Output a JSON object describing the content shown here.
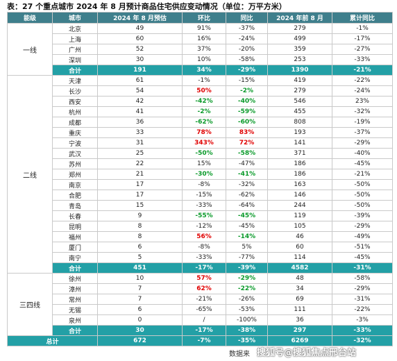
{
  "title": "表：27 个重点城市 2024 年 8 月预计商品住宅供应变动情况（单位：万平方米）",
  "table": {
    "header": [
      "能级",
      "城市",
      "2024 年 8 月预估",
      "环比",
      "同比",
      "2024 年前 8 月",
      "累计同比"
    ],
    "groups": [
      {
        "level": "一线",
        "rows": [
          {
            "cells": [
              "北京",
              "49",
              "91%",
              "-37%",
              "279",
              "-1%"
            ]
          },
          {
            "cells": [
              "上海",
              "60",
              "16%",
              "-24%",
              "499",
              "-17%"
            ]
          },
          {
            "cells": [
              "广州",
              "52",
              "37%",
              "-20%",
              "359",
              "-27%"
            ]
          },
          {
            "cells": [
              "深圳",
              "30",
              "10%",
              "-58%",
              "253",
              "-33%"
            ]
          }
        ],
        "subtotal": {
          "cells": [
            "合计",
            "191",
            "34%",
            "-29%",
            "1390",
            "-21%"
          ]
        }
      },
      {
        "level": "二线",
        "rows": [
          {
            "cells": [
              "天津",
              "61",
              "-1%",
              "-15%",
              "419",
              "-22%"
            ]
          },
          {
            "cells": [
              "长沙",
              "54",
              "50%",
              "-2%",
              "279",
              "-24%"
            ],
            "red": [
              2
            ],
            "green": [
              3
            ]
          },
          {
            "cells": [
              "西安",
              "42",
              "-42%",
              "-40%",
              "546",
              "23%"
            ],
            "green": [
              2,
              3
            ]
          },
          {
            "cells": [
              "杭州",
              "41",
              "-2%",
              "-59%",
              "455",
              "-32%"
            ],
            "green": [
              2,
              3
            ]
          },
          {
            "cells": [
              "成都",
              "36",
              "-62%",
              "-60%",
              "808",
              "-19%"
            ],
            "green": [
              2,
              3
            ]
          },
          {
            "cells": [
              "重庆",
              "33",
              "78%",
              "83%",
              "193",
              "-37%"
            ],
            "red": [
              2,
              3
            ]
          },
          {
            "cells": [
              "宁波",
              "31",
              "343%",
              "72%",
              "141",
              "-29%"
            ],
            "red": [
              2,
              3
            ]
          },
          {
            "cells": [
              "武汉",
              "25",
              "-50%",
              "-58%",
              "371",
              "-40%"
            ],
            "green": [
              2,
              3
            ]
          },
          {
            "cells": [
              "苏州",
              "22",
              "15%",
              "-47%",
              "186",
              "-45%"
            ]
          },
          {
            "cells": [
              "郑州",
              "21",
              "-30%",
              "-41%",
              "186",
              "-21%"
            ],
            "green": [
              2,
              3
            ]
          },
          {
            "cells": [
              "南京",
              "17",
              "-8%",
              "-32%",
              "163",
              "-50%"
            ]
          },
          {
            "cells": [
              "合肥",
              "17",
              "-15%",
              "-62%",
              "146",
              "-50%"
            ]
          },
          {
            "cells": [
              "青岛",
              "15",
              "-33%",
              "-64%",
              "244",
              "-50%"
            ]
          },
          {
            "cells": [
              "长春",
              "9",
              "-55%",
              "-45%",
              "119",
              "-39%"
            ],
            "green": [
              2,
              3
            ]
          },
          {
            "cells": [
              "昆明",
              "8",
              "-12%",
              "-45%",
              "105",
              "-29%"
            ]
          },
          {
            "cells": [
              "福州",
              "8",
              "56%",
              "-14%",
              "46",
              "-49%"
            ],
            "red": [
              2
            ],
            "green": [
              3
            ]
          },
          {
            "cells": [
              "厦门",
              "6",
              "-8%",
              "5%",
              "60",
              "-51%"
            ]
          },
          {
            "cells": [
              "南宁",
              "5",
              "-33%",
              "-77%",
              "114",
              "-45%"
            ]
          }
        ],
        "subtotal": {
          "cells": [
            "合计",
            "451",
            "-17%",
            "-39%",
            "4582",
            "-31%"
          ]
        }
      },
      {
        "level": "三四线",
        "rows": [
          {
            "cells": [
              "徐州",
              "10",
              "57%",
              "-29%",
              "48",
              "-58%"
            ],
            "red": [
              2
            ],
            "green": [
              3
            ]
          },
          {
            "cells": [
              "漳州",
              "7",
              "62%",
              "-22%",
              "34",
              "-29%"
            ],
            "red": [
              2
            ],
            "green": [
              3
            ]
          },
          {
            "cells": [
              "常州",
              "7",
              "-21%",
              "-26%",
              "69",
              "-31%"
            ]
          },
          {
            "cells": [
              "无锡",
              "6",
              "-65%",
              "-53%",
              "111",
              "-22%"
            ]
          },
          {
            "cells": [
              "泉州",
              "0",
              "/",
              "-100%",
              "36",
              "-3%"
            ]
          }
        ],
        "subtotal": {
          "cells": [
            "合计",
            "30",
            "-17%",
            "-38%",
            "297",
            "-33%"
          ]
        }
      }
    ],
    "total": {
      "cells": [
        "总计",
        "672",
        "-7%",
        "-35%",
        "6269",
        "-32%"
      ]
    }
  },
  "source": "数据来",
  "watermark": "搜狐号@搜狐焦点邢台站"
}
